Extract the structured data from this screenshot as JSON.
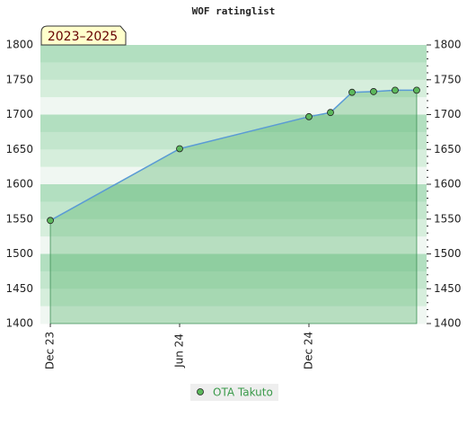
{
  "chart_data": {
    "type": "line",
    "title": "WOF ratinglist",
    "badge": "2023–2025",
    "x": [
      0,
      6,
      12,
      13,
      14,
      15,
      16,
      17
    ],
    "xlim": [
      -0.46,
      17.46
    ],
    "xticks": [
      {
        "value": 0,
        "label": "Dec 23"
      },
      {
        "value": 6,
        "label": "Jun 24"
      },
      {
        "value": 12,
        "label": "Dec 24"
      }
    ],
    "series": [
      {
        "name": "OTA Takuto",
        "color": "#5a9bd5",
        "values": [
          1548,
          1651,
          1697,
          1703,
          1732,
          1733,
          1735,
          1735
        ]
      }
    ],
    "ylim": [
      1400,
      1800
    ],
    "yticks": [
      1400,
      1450,
      1500,
      1550,
      1600,
      1650,
      1700,
      1750,
      1800
    ]
  }
}
